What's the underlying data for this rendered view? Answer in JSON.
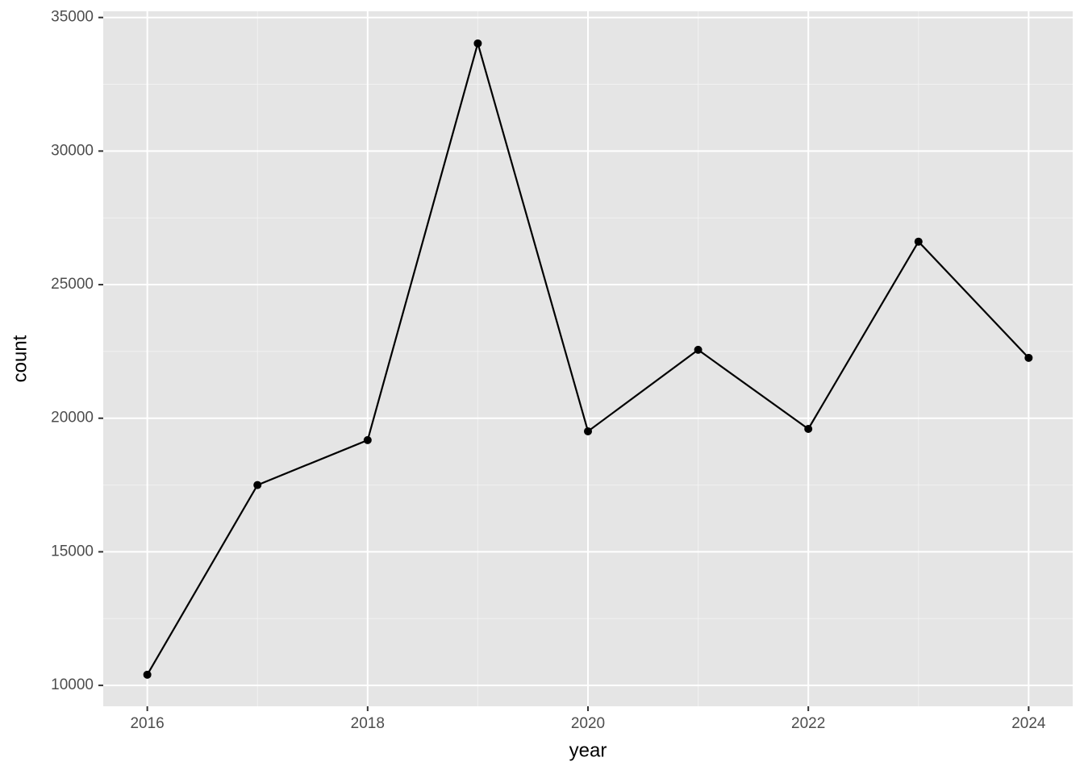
{
  "chart_data": {
    "type": "line",
    "x_label": "year",
    "y_label": "count",
    "x": [
      2016,
      2017,
      2018,
      2019,
      2020,
      2021,
      2022,
      2023,
      2024
    ],
    "series": [
      {
        "color": "#000000",
        "values": [
          10400,
          17500,
          19180,
          34030,
          19510,
          22560,
          19600,
          26610,
          22260
        ]
      }
    ],
    "xlim": [
      2015.6,
      2024.4
    ],
    "xticks": [
      2016,
      2018,
      2020,
      2022,
      2024
    ],
    "ylim": [
      9218,
      35232
    ],
    "yticks": [
      10000,
      15000,
      20000,
      25000,
      30000,
      35000
    ],
    "grid": true,
    "minor_grid": true,
    "markers": true
  }
}
